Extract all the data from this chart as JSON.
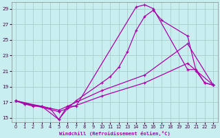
{
  "bg_color": "#c8eef0",
  "grid_color": "#aacccc",
  "line_color": "#aa00aa",
  "xlabel": "Windchill (Refroidissement éolien,°C)",
  "xlim": [
    -0.5,
    23.5
  ],
  "ylim": [
    14.5,
    29.8
  ],
  "yticks": [
    15,
    17,
    19,
    21,
    23,
    25,
    27,
    29
  ],
  "xticks": [
    0,
    1,
    2,
    3,
    4,
    5,
    6,
    7,
    8,
    9,
    10,
    11,
    12,
    13,
    14,
    15,
    16,
    17,
    18,
    19,
    20,
    21,
    22,
    23
  ],
  "line1_x": [
    0,
    1,
    2,
    3,
    4,
    5,
    6,
    7,
    14,
    15,
    16,
    20,
    21,
    22,
    23
  ],
  "line1_y": [
    17.2,
    16.8,
    16.5,
    16.5,
    16.2,
    14.8,
    16.5,
    16.5,
    29.2,
    29.5,
    29.0,
    21.2,
    21.2,
    19.5,
    19.2
  ],
  "line2_x": [
    0,
    1,
    3,
    5,
    6,
    7,
    10,
    11,
    12,
    13,
    14,
    15,
    16,
    17,
    20,
    21,
    22,
    23
  ],
  "line2_y": [
    17.2,
    16.8,
    16.5,
    14.8,
    16.2,
    17.2,
    19.5,
    20.3,
    21.5,
    23.5,
    26.2,
    28.0,
    28.8,
    27.5,
    25.5,
    21.0,
    19.5,
    19.2
  ],
  "line3_x": [
    0,
    5,
    10,
    15,
    20,
    23
  ],
  "line3_y": [
    17.2,
    16.0,
    18.5,
    20.5,
    24.5,
    19.2
  ],
  "line4_x": [
    0,
    5,
    10,
    15,
    20,
    23
  ],
  "line4_y": [
    17.2,
    15.8,
    17.8,
    19.5,
    22.0,
    19.2
  ]
}
